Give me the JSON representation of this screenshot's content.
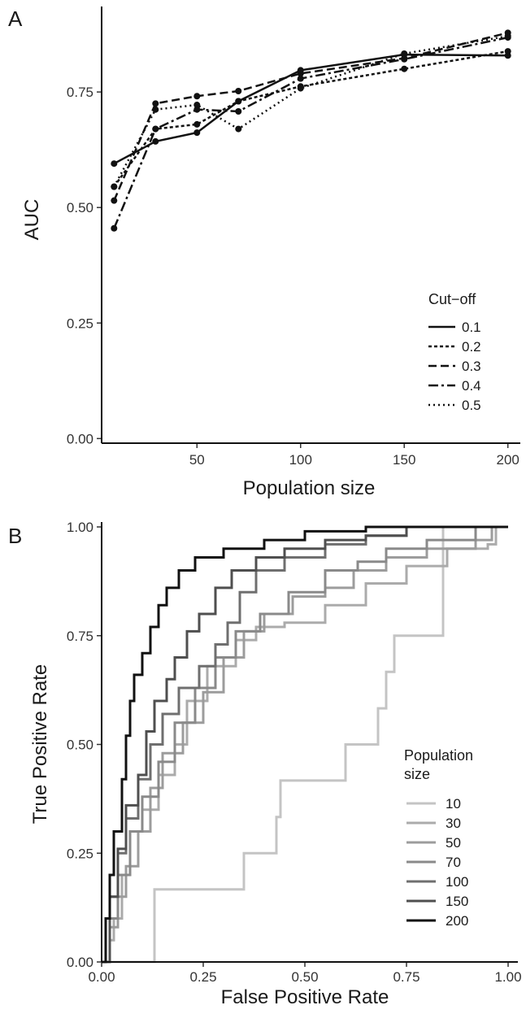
{
  "chart_data": [
    {
      "panel_label": "A",
      "type": "line",
      "xlabel": "Population size",
      "ylabel": "AUC",
      "xlim": [
        4,
        206
      ],
      "ylim": [
        -0.01,
        0.935
      ],
      "xticks": [
        50,
        100,
        150,
        200
      ],
      "yticks": [
        0.0,
        0.25,
        0.5,
        0.75
      ],
      "ytick_labels": [
        "0.00",
        "0.25",
        "0.50",
        "0.75"
      ],
      "x": [
        10,
        30,
        50,
        70,
        100,
        150,
        200
      ],
      "grid": false,
      "legend": {
        "title": "Cut−off",
        "placement": "bottom-right"
      },
      "series": [
        {
          "name": "0.1",
          "dash": "solid",
          "values": [
            0.595,
            0.643,
            0.662,
            0.73,
            0.797,
            0.831,
            0.829
          ]
        },
        {
          "name": "0.2",
          "dash": "short-dash",
          "values": [
            0.545,
            0.67,
            0.68,
            0.73,
            0.762,
            0.8,
            0.838
          ]
        },
        {
          "name": "0.3",
          "dash": "long-dash",
          "values": [
            0.515,
            0.725,
            0.741,
            0.752,
            0.79,
            0.823,
            0.878
          ]
        },
        {
          "name": "0.4",
          "dash": "dash-dot",
          "values": [
            0.455,
            0.67,
            0.712,
            0.708,
            0.779,
            0.821,
            0.868
          ]
        },
        {
          "name": "0.5",
          "dash": "dotted",
          "values": [
            0.545,
            0.712,
            0.722,
            0.67,
            0.758,
            0.833,
            0.871
          ]
        }
      ]
    },
    {
      "panel_label": "B",
      "type": "line",
      "xlabel": "False Positive Rate",
      "ylabel": "True Positive Rate",
      "xlim": [
        0,
        1
      ],
      "ylim": [
        0,
        1
      ],
      "xticks": [
        0,
        0.25,
        0.5,
        0.75,
        1.0
      ],
      "yticks": [
        0,
        0.25,
        0.5,
        0.75,
        1.0
      ],
      "xtick_labels": [
        "0.00",
        "0.25",
        "0.50",
        "0.75",
        "1.00"
      ],
      "ytick_labels": [
        "0.00",
        "0.25",
        "0.50",
        "0.75",
        "1.00"
      ],
      "grid": false,
      "legend": {
        "title": "Population\nsize",
        "placement": "bottom-right"
      },
      "series": [
        {
          "name": "10",
          "color": "#c4c4c4",
          "points": [
            [
              0,
              0
            ],
            [
              0.13,
              0
            ],
            [
              0.13,
              0.167
            ],
            [
              0.35,
              0.167
            ],
            [
              0.35,
              0.25
            ],
            [
              0.43,
              0.25
            ],
            [
              0.43,
              0.333
            ],
            [
              0.44,
              0.333
            ],
            [
              0.44,
              0.417
            ],
            [
              0.6,
              0.417
            ],
            [
              0.6,
              0.5
            ],
            [
              0.68,
              0.5
            ],
            [
              0.68,
              0.583
            ],
            [
              0.7,
              0.583
            ],
            [
              0.7,
              0.667
            ],
            [
              0.72,
              0.667
            ],
            [
              0.72,
              0.75
            ],
            [
              0.84,
              0.75
            ],
            [
              0.84,
              1.0
            ],
            [
              1,
              1
            ]
          ]
        },
        {
          "name": "30",
          "color": "#ababab",
          "points": [
            [
              0,
              0
            ],
            [
              0.02,
              0.05
            ],
            [
              0.03,
              0.1
            ],
            [
              0.05,
              0.2
            ],
            [
              0.07,
              0.3
            ],
            [
              0.1,
              0.35
            ],
            [
              0.14,
              0.43
            ],
            [
              0.18,
              0.5
            ],
            [
              0.21,
              0.6
            ],
            [
              0.26,
              0.68
            ],
            [
              0.33,
              0.74
            ],
            [
              0.38,
              0.77
            ],
            [
              0.45,
              0.78
            ],
            [
              0.55,
              0.82
            ],
            [
              0.65,
              0.87
            ],
            [
              0.75,
              0.91
            ],
            [
              0.85,
              0.95
            ],
            [
              0.95,
              0.96
            ],
            [
              0.97,
              1.0
            ],
            [
              1,
              1
            ]
          ]
        },
        {
          "name": "50",
          "color": "#9c9c9c",
          "points": [
            [
              0,
              0
            ],
            [
              0.02,
              0.08
            ],
            [
              0.04,
              0.15
            ],
            [
              0.06,
              0.22
            ],
            [
              0.09,
              0.3
            ],
            [
              0.12,
              0.4
            ],
            [
              0.15,
              0.48
            ],
            [
              0.2,
              0.55
            ],
            [
              0.25,
              0.62
            ],
            [
              0.3,
              0.7
            ],
            [
              0.35,
              0.76
            ],
            [
              0.4,
              0.8
            ],
            [
              0.47,
              0.84
            ],
            [
              0.55,
              0.86
            ],
            [
              0.62,
              0.9
            ],
            [
              0.7,
              0.93
            ],
            [
              0.8,
              0.95
            ],
            [
              0.92,
              0.97
            ],
            [
              0.96,
              1.0
            ],
            [
              1,
              1
            ]
          ]
        },
        {
          "name": "70",
          "color": "#8a8a8a",
          "points": [
            [
              0,
              0
            ],
            [
              0.02,
              0.1
            ],
            [
              0.04,
              0.2
            ],
            [
              0.07,
              0.3
            ],
            [
              0.1,
              0.38
            ],
            [
              0.14,
              0.46
            ],
            [
              0.18,
              0.55
            ],
            [
              0.23,
              0.63
            ],
            [
              0.28,
              0.7
            ],
            [
              0.33,
              0.76
            ],
            [
              0.39,
              0.8
            ],
            [
              0.46,
              0.85
            ],
            [
              0.55,
              0.9
            ],
            [
              0.63,
              0.92
            ],
            [
              0.7,
              0.95
            ],
            [
              0.8,
              0.97
            ],
            [
              0.92,
              1.0
            ],
            [
              1,
              1
            ]
          ]
        },
        {
          "name": "100",
          "color": "#6f6f6f",
          "points": [
            [
              0,
              0
            ],
            [
              0.02,
              0.15
            ],
            [
              0.04,
              0.25
            ],
            [
              0.06,
              0.33
            ],
            [
              0.09,
              0.42
            ],
            [
              0.12,
              0.5
            ],
            [
              0.15,
              0.57
            ],
            [
              0.19,
              0.63
            ],
            [
              0.24,
              0.68
            ],
            [
              0.28,
              0.73
            ],
            [
              0.31,
              0.78
            ],
            [
              0.34,
              0.85
            ],
            [
              0.38,
              0.9
            ],
            [
              0.45,
              0.93
            ],
            [
              0.55,
              0.96
            ],
            [
              0.65,
              0.98
            ],
            [
              0.75,
              1.0
            ],
            [
              1,
              1
            ]
          ]
        },
        {
          "name": "150",
          "color": "#4f4f4f",
          "points": [
            [
              0,
              0
            ],
            [
              0.02,
              0.15
            ],
            [
              0.04,
              0.26
            ],
            [
              0.06,
              0.36
            ],
            [
              0.09,
              0.43
            ],
            [
              0.11,
              0.53
            ],
            [
              0.13,
              0.6
            ],
            [
              0.16,
              0.65
            ],
            [
              0.18,
              0.7
            ],
            [
              0.21,
              0.76
            ],
            [
              0.24,
              0.8
            ],
            [
              0.28,
              0.86
            ],
            [
              0.32,
              0.9
            ],
            [
              0.38,
              0.93
            ],
            [
              0.45,
              0.95
            ],
            [
              0.55,
              0.97
            ],
            [
              0.65,
              0.98
            ],
            [
              0.75,
              1.0
            ],
            [
              1,
              1
            ]
          ]
        },
        {
          "name": "200",
          "color": "#111111",
          "points": [
            [
              0,
              0
            ],
            [
              0.01,
              0.1
            ],
            [
              0.02,
              0.2
            ],
            [
              0.03,
              0.3
            ],
            [
              0.05,
              0.42
            ],
            [
              0.06,
              0.52
            ],
            [
              0.07,
              0.6
            ],
            [
              0.08,
              0.66
            ],
            [
              0.1,
              0.71
            ],
            [
              0.12,
              0.77
            ],
            [
              0.14,
              0.82
            ],
            [
              0.16,
              0.86
            ],
            [
              0.19,
              0.9
            ],
            [
              0.23,
              0.93
            ],
            [
              0.3,
              0.95
            ],
            [
              0.4,
              0.97
            ],
            [
              0.5,
              0.99
            ],
            [
              0.65,
              1.0
            ],
            [
              1,
              1
            ]
          ]
        }
      ]
    }
  ]
}
